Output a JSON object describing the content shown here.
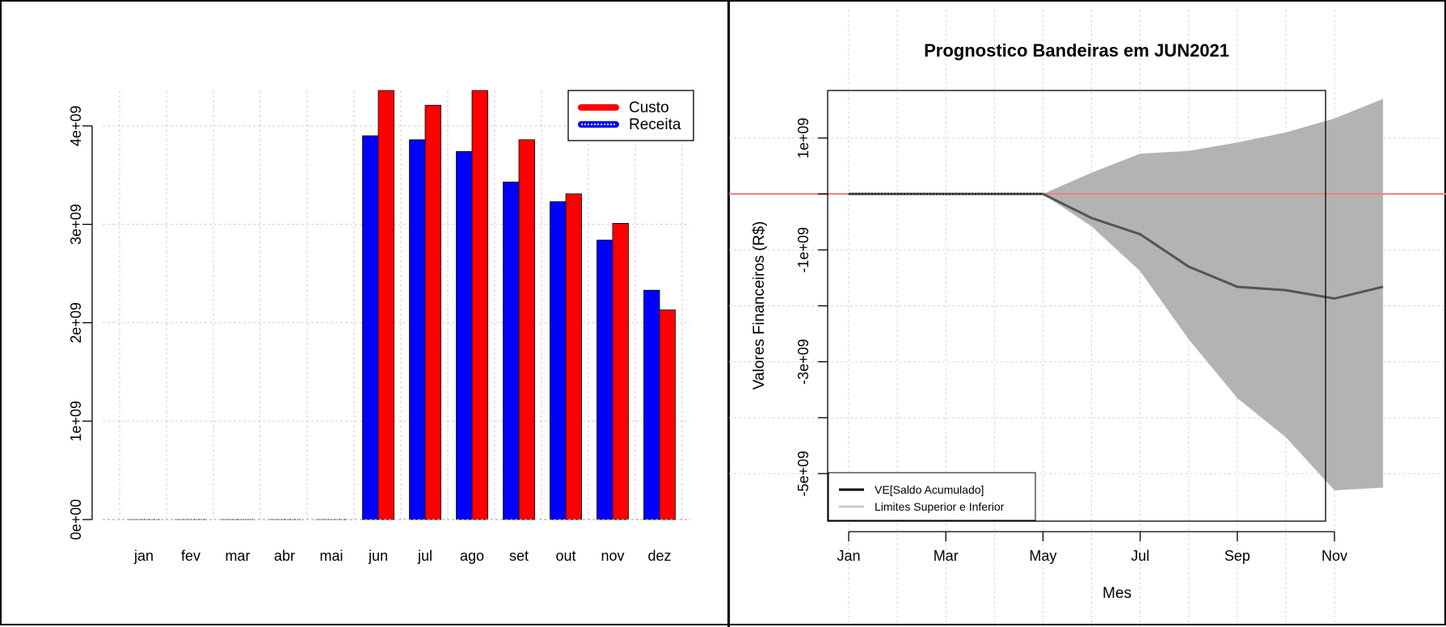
{
  "chart_data": [
    {
      "type": "bar",
      "categories": [
        "jan",
        "fev",
        "mar",
        "abr",
        "mai",
        "jun",
        "jul",
        "ago",
        "set",
        "out",
        "nov",
        "dez"
      ],
      "series": [
        {
          "name": "Receita",
          "color": "#0000ff",
          "values": [
            0,
            0,
            0,
            0,
            0,
            3900000000.0,
            3860000000.0,
            3740000000.0,
            3430000000.0,
            3230000000.0,
            2840000000.0,
            2330000000.0
          ]
        },
        {
          "name": "Custo",
          "color": "#ff0000",
          "values": [
            0,
            0,
            0,
            0,
            0,
            4360000000.0,
            4210000000.0,
            4360000000.0,
            3860000000.0,
            3310000000.0,
            3010000000.0,
            2130000000.0
          ]
        }
      ],
      "yticks": [
        0,
        1000000000.0,
        2000000000.0,
        3000000000.0,
        4000000000.0
      ],
      "ytick_labels": [
        "0e+00",
        "1e+09",
        "2e+09",
        "3e+09",
        "4e+09"
      ],
      "ylim": [
        0,
        4360000000.0
      ],
      "grid": true,
      "legend": {
        "position": "top-right",
        "entries": [
          "Custo",
          "Receita"
        ]
      },
      "title": "",
      "xlabel": "",
      "ylabel": ""
    },
    {
      "type": "area",
      "title": "Prognostico Bandeiras em JUN2021",
      "xlabel": "Mes",
      "ylabel": "Valores Financeiros (R$)",
      "x": [
        1,
        2,
        3,
        4,
        5,
        6,
        7,
        8,
        9,
        10,
        11,
        12
      ],
      "xticks": [
        1,
        3,
        5,
        7,
        9,
        11
      ],
      "xtick_labels": [
        "Jan",
        "Mar",
        "May",
        "Jul",
        "Sep",
        "Nov"
      ],
      "yticks": [
        1000000000.0,
        0,
        -1000000000.0,
        -2000000000.0,
        -3000000000.0,
        -4000000000.0,
        -5000000000.0
      ],
      "ytick_labels": [
        "1e+09",
        "",
        "-1e+09",
        "",
        "-3e+09",
        "",
        "-5e+09"
      ],
      "ylim": [
        -5850000000.0,
        1850000000.0
      ],
      "series": [
        {
          "name": "VE[Saldo Acumulado]",
          "color": "#555555",
          "values": [
            0,
            0,
            0,
            0,
            0,
            -430000000.0,
            -720000000.0,
            -1300000000.0,
            -1660000000.0,
            -1720000000.0,
            -1870000000.0,
            -1660000000.0
          ]
        },
        {
          "name": "Limites Superior e Inferior",
          "color": "#b3b3b3",
          "upper": [
            0,
            0,
            0,
            0,
            0,
            380000000.0,
            720000000.0,
            770000000.0,
            920000000.0,
            1100000000.0,
            1350000000.0,
            1700000000.0
          ],
          "lower": [
            0,
            0,
            0,
            0,
            0,
            -580000000.0,
            -1380000000.0,
            -2600000000.0,
            -3650000000.0,
            -4350000000.0,
            -5300000000.0,
            -5250000000.0
          ]
        }
      ],
      "reference_line": {
        "y": 0,
        "color": "#f08080"
      },
      "grid": true,
      "legend": {
        "position": "bottom-left",
        "entries": [
          "VE[Saldo Acumulado]",
          "Limites Superior e Inferior"
        ]
      }
    }
  ]
}
